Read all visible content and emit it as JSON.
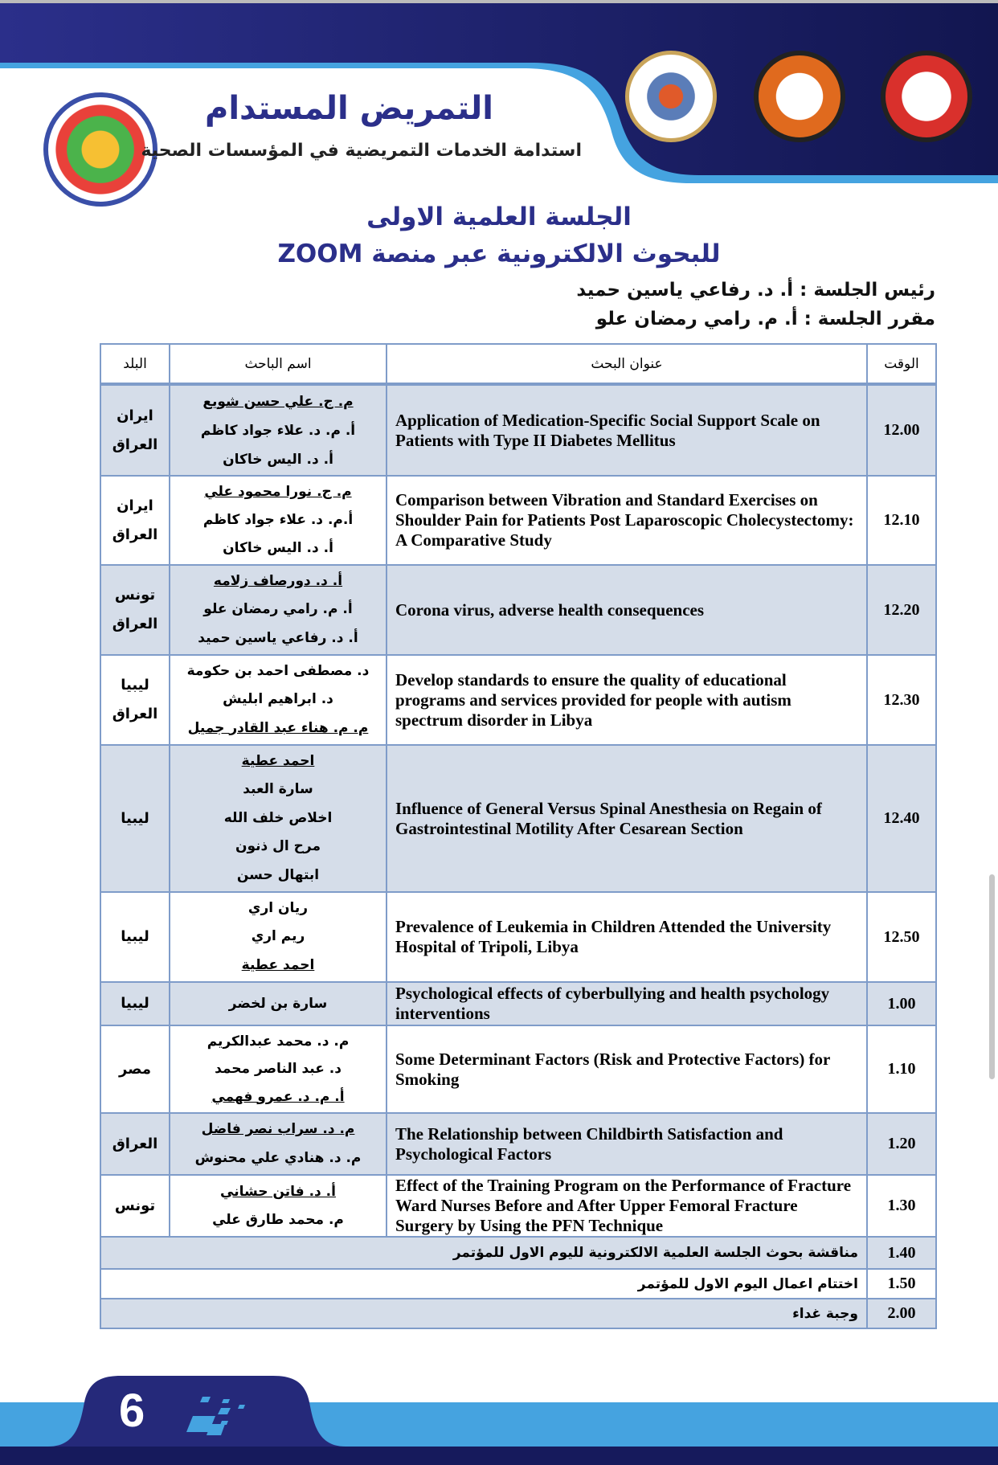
{
  "header": {
    "title": "التمريض المستدام",
    "subtitle": "استدامة الخدمات التمريضية في المؤسسات الصحية",
    "logos": [
      "conference-logo",
      "ministry-logo",
      "university-logo",
      "nursing-college-logo"
    ]
  },
  "session": {
    "line1": "الجلسة العلمية الاولى",
    "line2": "للبحوث الالكترونية عبر منصة ZOOM",
    "chair": "رئيس الجلسة : أ. د. رفاعي ياسين حميد",
    "rapporteur": "مقرر الجلسة : أ. م. رامي رمضان علو"
  },
  "table": {
    "headers": {
      "time": "الوقت",
      "title": "عنوان البحث",
      "researcher": "اسم الباحث",
      "country": "البلد"
    },
    "rows": [
      {
        "time": "12.00",
        "title": "Application of Medication-Specific Social Support Scale on Patients with Type II Diabetes Mellitus",
        "names": [
          "م. ج. علي حسن شويع",
          "أ. م. د. علاء جواد كاظم",
          "أ. د. اليس خاكان"
        ],
        "underline": 0,
        "country": [
          "ايران",
          "العراق"
        ]
      },
      {
        "time": "12.10",
        "title": "Comparison between Vibration and Standard Exercises on Shoulder Pain for Patients Post Laparoscopic Cholecystectomy: A Comparative Study",
        "names": [
          "م. ج. نورا محمود علي",
          "أ.م. د. علاء جواد كاظم",
          "أ. د. اليس خاكان"
        ],
        "underline": 0,
        "country": [
          "ايران",
          "العراق"
        ]
      },
      {
        "time": "12.20",
        "title": "Corona virus, adverse health consequences",
        "names": [
          "أ. د. دورصاف زلامه",
          "أ. م. رامي رمضان علو",
          "أ. د. رفاعي ياسين حميد"
        ],
        "underline": 0,
        "country": [
          "تونس",
          "العراق"
        ]
      },
      {
        "time": "12.30",
        "title": "Develop standards to ensure the quality of educational programs and services provided for people with autism spectrum disorder in Libya",
        "names": [
          "د. مصطفى احمد بن حكومة",
          "د. ابراهيم ابليش",
          "م. م. هناء عبد القادر جميل"
        ],
        "underline": 2,
        "country": [
          "ليبيا",
          "العراق"
        ]
      },
      {
        "time": "12.40",
        "title": "Influence of General Versus Spinal Anesthesia on Regain of Gastrointestinal Motility After Cesarean Section",
        "names": [
          "احمد عطية",
          "سارة العبد",
          "اخلاص خلف الله",
          "مرح ال ذنون",
          "ابتهال حسن"
        ],
        "underline": 0,
        "country": [
          "ليبيا"
        ]
      },
      {
        "time": "12.50",
        "title": "Prevalence of Leukemia in Children Attended the University Hospital of Tripoli, Libya",
        "names": [
          "ريان اري",
          "ريم اري",
          "احمد عطية"
        ],
        "underline": 2,
        "country": [
          "ليبيا"
        ]
      },
      {
        "time": "1.00",
        "title": "Psychological effects of cyberbullying and health psychology interventions",
        "names": [
          "سارة بن لخضر"
        ],
        "underline": -1,
        "country": [
          "ليبيا"
        ]
      },
      {
        "time": "1.10",
        "title": "Some Determinant Factors (Risk and Protective Factors) for Smoking",
        "names": [
          "م. د. محمد عبدالكريم",
          "د. عبد الناصر محمد",
          "أ. م. د. عمرو فهمي"
        ],
        "underline": 2,
        "country": [
          "مصر"
        ]
      },
      {
        "time": "1.20",
        "title": "The Relationship between Childbirth Satisfaction and Psychological Factors",
        "names": [
          "م. د. سراب نصر فاضل",
          "م. د. هنادي علي محنوش"
        ],
        "underline": 0,
        "country": [
          "العراق"
        ]
      },
      {
        "time": "1.30",
        "title": "Effect of the Training Program on the Performance of Fracture Ward Nurses Before and After Upper Femoral Fracture Surgery by Using the PFN Technique",
        "names": [
          "أ. د. فاتن حشاني",
          "م. محمد طارق علي"
        ],
        "underline": 0,
        "country": [
          "تونس"
        ]
      }
    ],
    "closing": [
      {
        "time": "1.40",
        "text": "مناقشة بحوث الجلسة العلمية الالكترونية لليوم الاول للمؤتمر"
      },
      {
        "time": "1.50",
        "text": "اختتام اعمال اليوم الاول للمؤتمر"
      },
      {
        "time": "2.00",
        "text": "وجبة غداء"
      }
    ]
  },
  "footer": {
    "page_number": "6"
  },
  "colors": {
    "navy": "#1e2270",
    "light_blue": "#45a3e0",
    "title_blue": "#2b2f8a",
    "row_shade": "#d5dde9",
    "border": "#7f9cc9"
  }
}
